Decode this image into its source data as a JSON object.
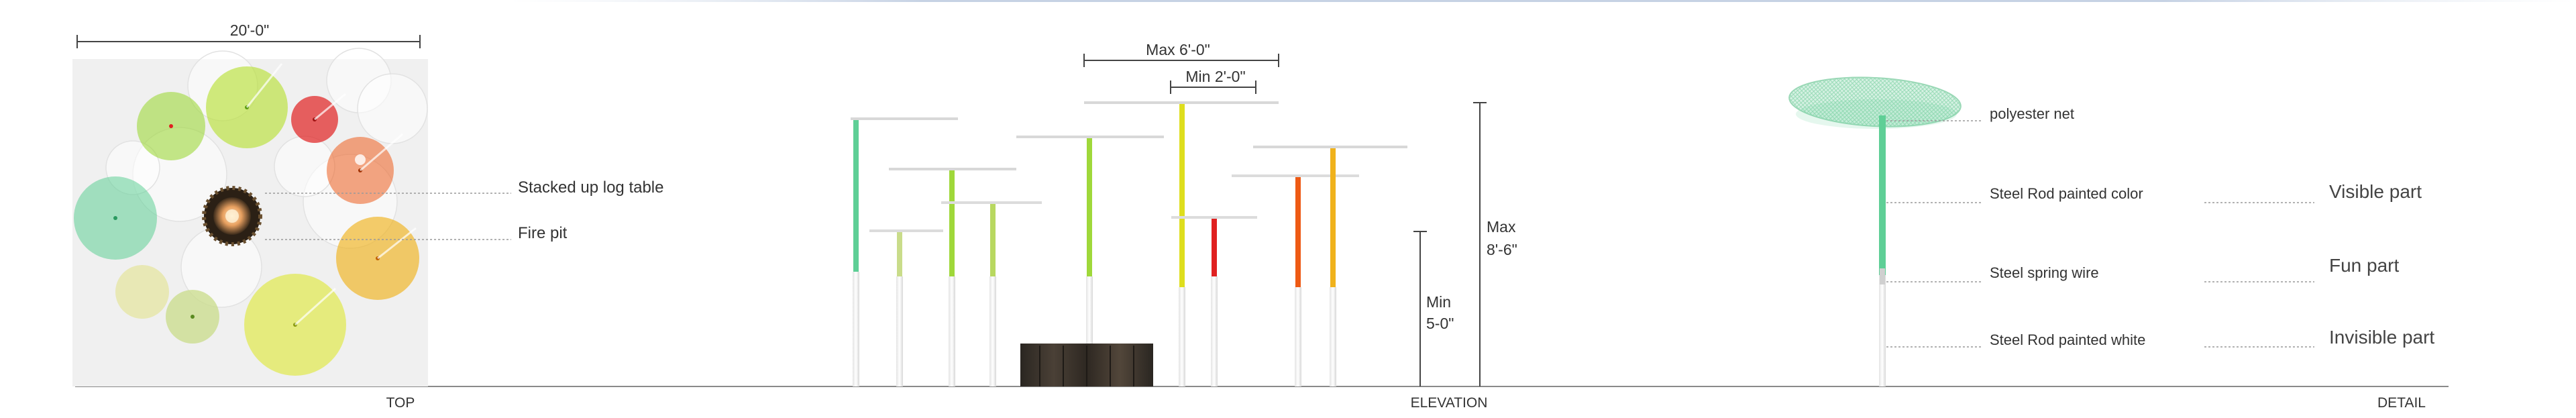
{
  "top_view": {
    "dimension": "20'-0\"",
    "callouts": {
      "log_table": "Stacked up log table",
      "fire_pit": "Fire pit"
    },
    "caption": "TOP"
  },
  "elevation": {
    "dims": {
      "max_span": "Max 6'-0\"",
      "min_span": "Min 2'-0\"",
      "max_height_1": "Max",
      "max_height_2": "8'-6\"",
      "min_height_1": "Min",
      "min_height_2": "5-0\""
    },
    "caption": "ELEVATION"
  },
  "detail": {
    "labels": {
      "net": "polyester net",
      "rod_color": "Steel Rod painted color",
      "spring": "Steel spring wire",
      "rod_white": "Steel Rod painted white"
    },
    "parts": {
      "visible": "Visible part",
      "fun": "Fun part",
      "invisible": "Invisible part"
    },
    "caption": "DETAIL"
  },
  "colors": {
    "teal": "#5ecf96",
    "lime": "#9fd83a",
    "yellow_green": "#c6d83a",
    "yellow": "#dede1e",
    "red": "#e02020",
    "orange": "#ee5a14",
    "amber": "#f0b21c",
    "pale_green": "#c9dc8a",
    "ground": "#888888"
  },
  "icons": {
    "fire_pit": "fire-pit-icon",
    "log_table": "log-table-icon"
  }
}
